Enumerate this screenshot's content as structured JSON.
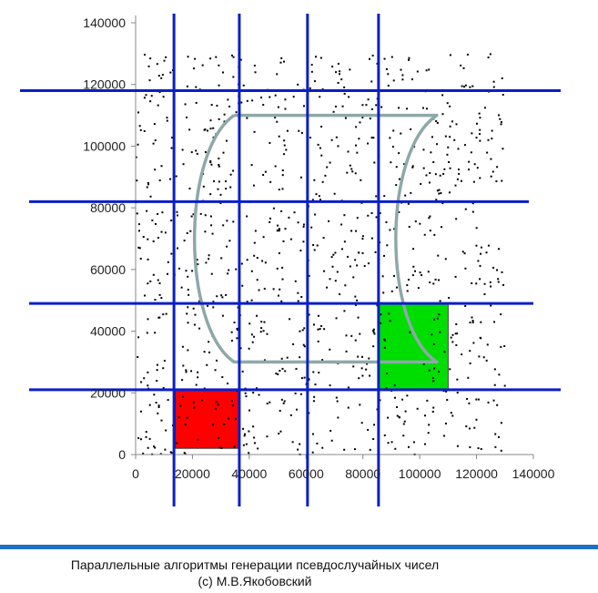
{
  "chart_data": {
    "type": "scatter",
    "xlim": [
      0,
      140000
    ],
    "ylim": [
      0,
      140000
    ],
    "x_ticks": [
      "0",
      "20000",
      "40000",
      "60000",
      "80000",
      "100000",
      "120000",
      "140000"
    ],
    "y_ticks": [
      "0",
      "20000",
      "40000",
      "60000",
      "80000",
      "100000",
      "120000",
      "140000"
    ],
    "points_count": 1000,
    "points_range": {
      "x": [
        0,
        130000
      ],
      "y": [
        0,
        130000
      ]
    },
    "grid_vertical_x": [
      13500,
      36500,
      60500,
      85500
    ],
    "grid_horizontal_y": [
      21000,
      49000,
      82000,
      118000
    ],
    "highlighted_cells": [
      {
        "x": [
          14000,
          36500
        ],
        "y": [
          2000,
          21000
        ],
        "color": "#ff0000"
      },
      {
        "x": [
          85500,
          110000
        ],
        "y": [
          21000,
          49000
        ],
        "color": "#00dd00"
      }
    ],
    "cylinder_outline": {
      "x": [
        18000,
        106000
      ],
      "y": [
        30000,
        110000
      ],
      "color": "#8ea8a8"
    },
    "colors": {
      "grid": "#0a1ec8",
      "points": "#000000",
      "axis": "#888888"
    }
  },
  "footer": {
    "line1": "Параллельные алгоритмы генерации псевдослучайных чисел",
    "line2": "(с) М.В.Якобовский"
  },
  "colors": {
    "footer_bar": "#1f6ec6"
  }
}
